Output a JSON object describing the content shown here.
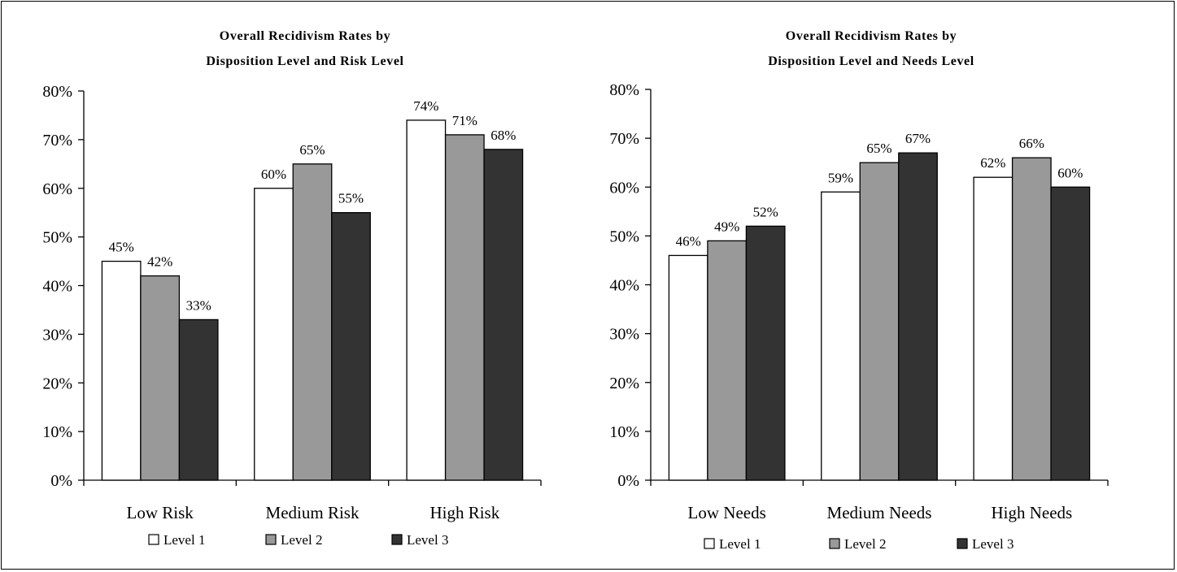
{
  "colors": {
    "level1": "#ffffff",
    "level2": "#999999",
    "level3": "#333333",
    "axis": "#000000"
  },
  "chart_data": [
    {
      "type": "bar",
      "title": [
        "Overall Recidivism Rates by",
        "Disposition Level and Risk Level"
      ],
      "categories": [
        "Low Risk",
        "Medium Risk",
        "High Risk"
      ],
      "series": [
        {
          "name": "Level 1",
          "values": [
            45,
            60,
            74
          ]
        },
        {
          "name": "Level 2",
          "values": [
            42,
            65,
            71
          ]
        },
        {
          "name": "Level 3",
          "values": [
            33,
            55,
            68
          ]
        }
      ],
      "y_ticks": [
        "0%",
        "10%",
        "20%",
        "30%",
        "40%",
        "50%",
        "60%",
        "70%",
        "80%"
      ],
      "ylim": [
        0,
        80
      ],
      "value_format": "percent",
      "grid": false,
      "legend_position": "bottom"
    },
    {
      "type": "bar",
      "title": [
        "Overall Recidivism Rates by",
        "Disposition Level and Needs Level"
      ],
      "categories": [
        "Low Needs",
        "Medium Needs",
        "High Needs"
      ],
      "series": [
        {
          "name": "Level 1",
          "values": [
            46,
            59,
            62
          ]
        },
        {
          "name": "Level 2",
          "values": [
            49,
            65,
            66
          ]
        },
        {
          "name": "Level 3",
          "values": [
            52,
            67,
            60
          ]
        }
      ],
      "y_ticks": [
        "0%",
        "10%",
        "20%",
        "30%",
        "40%",
        "50%",
        "60%",
        "70%",
        "80%"
      ],
      "ylim": [
        0,
        80
      ],
      "value_format": "percent",
      "grid": false,
      "legend_position": "bottom"
    }
  ]
}
